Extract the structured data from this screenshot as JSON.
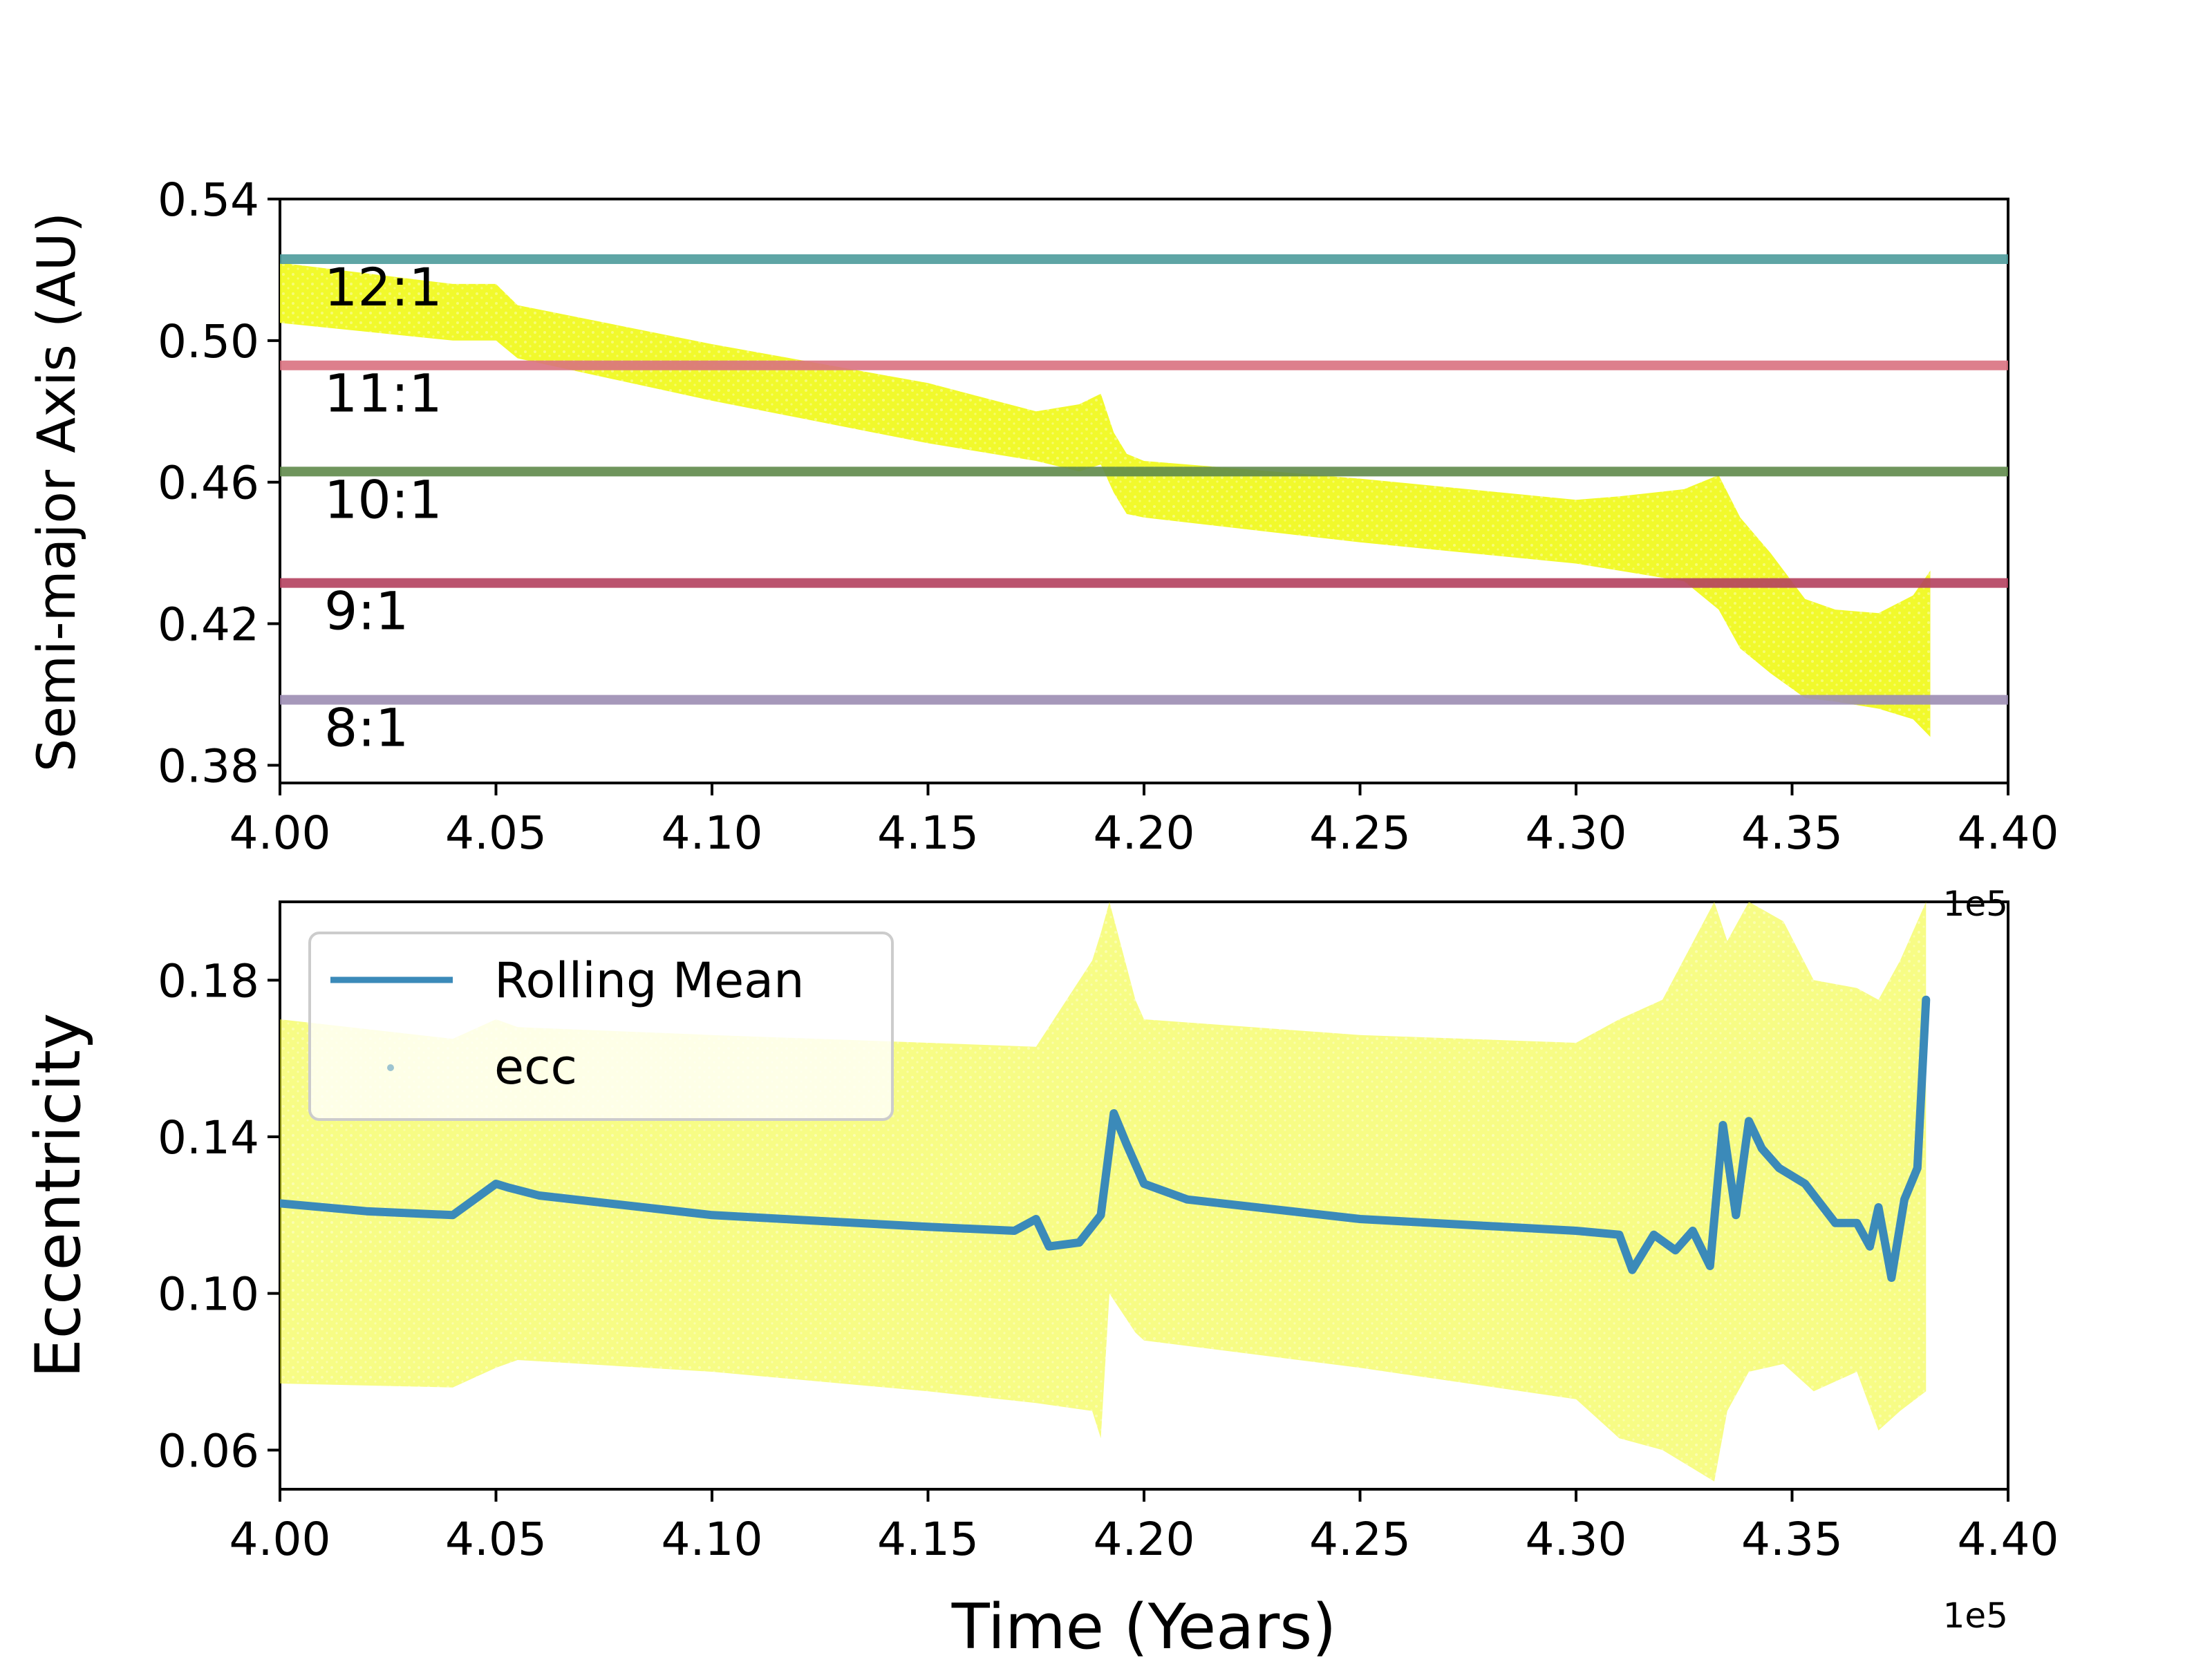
{
  "colors": {
    "gradient": [
      "#f0f921",
      "#fdc527",
      "#f89540",
      "#e16462",
      "#d8576b",
      "#b12a90",
      "#8f0da4",
      "#6a00a8"
    ],
    "rolling_mean": "#3b8ab9",
    "resonance_12_1": "#4c9b9b",
    "resonance_11_1": "#d9717f",
    "resonance_10_1": "#5f8a4a",
    "resonance_9_1": "#b4405e",
    "resonance_8_1": "#9c8db3"
  },
  "chart_data": [
    {
      "type": "scatter",
      "panel": "top",
      "xlabel": "",
      "ylabel": "Semi-major Axis (AU)",
      "xlim": [
        400000,
        440000
      ],
      "ylim": [
        0.375,
        0.54
      ],
      "xticks": [
        400000,
        405000,
        410000,
        415000,
        420000,
        425000,
        430000,
        435000,
        440000
      ],
      "xtick_labels": [
        "4.00",
        "4.05",
        "4.10",
        "4.15",
        "4.20",
        "4.25",
        "4.30",
        "4.35",
        "4.40"
      ],
      "yticks": [
        0.38,
        0.42,
        0.46,
        0.5,
        0.54
      ],
      "ytick_labels": [
        "0.38",
        "0.42",
        "0.46",
        "0.50",
        "0.54"
      ],
      "x_offset_text": "1e5",
      "resonances": [
        {
          "label": "12:1",
          "value": 0.523,
          "color_key": "resonance_12_1"
        },
        {
          "label": "11:1",
          "value": 0.493,
          "color_key": "resonance_11_1"
        },
        {
          "label": "10:1",
          "value": 0.463,
          "color_key": "resonance_10_1"
        },
        {
          "label": "9:1",
          "value": 0.4315,
          "color_key": "resonance_9_1"
        },
        {
          "label": "8:1",
          "value": 0.3985,
          "color_key": "resonance_8_1"
        }
      ],
      "band_x": [
        400000,
        404000,
        405000,
        405500,
        410000,
        415000,
        417500,
        418500,
        419000,
        419300,
        419600,
        420000,
        425000,
        430000,
        431000,
        432500,
        433300,
        433800,
        434500,
        435300,
        436000,
        437000,
        437800,
        438200
      ],
      "band_upper": [
        0.522,
        0.516,
        0.516,
        0.51,
        0.499,
        0.488,
        0.48,
        0.482,
        0.485,
        0.474,
        0.468,
        0.466,
        0.461,
        0.455,
        0.456,
        0.458,
        0.462,
        0.45,
        0.44,
        0.427,
        0.424,
        0.423,
        0.428,
        0.435
      ],
      "band_lower": [
        0.505,
        0.5,
        0.5,
        0.495,
        0.483,
        0.471,
        0.466,
        0.463,
        0.465,
        0.457,
        0.451,
        0.45,
        0.443,
        0.437,
        0.435,
        0.432,
        0.424,
        0.413,
        0.406,
        0.399,
        0.398,
        0.396,
        0.393,
        0.388
      ]
    },
    {
      "type": "scatter",
      "panel": "bottom",
      "xlabel": "Time (Years)",
      "ylabel": "Eccentricity",
      "xlim": [
        400000,
        440000
      ],
      "ylim": [
        0.05,
        0.2
      ],
      "xticks": [
        400000,
        405000,
        410000,
        415000,
        420000,
        425000,
        430000,
        435000,
        440000
      ],
      "xtick_labels": [
        "4.00",
        "4.05",
        "4.10",
        "4.15",
        "4.20",
        "4.25",
        "4.30",
        "4.35",
        "4.40"
      ],
      "yticks": [
        0.06,
        0.1,
        0.14,
        0.18
      ],
      "ytick_labels": [
        "0.06",
        "0.10",
        "0.14",
        "0.18"
      ],
      "x_offset_text": "1e5",
      "legend": {
        "placement": "top-left",
        "entries": [
          "Rolling Mean",
          "ecc"
        ]
      },
      "series": [
        {
          "name": "Rolling Mean",
          "x": [
            400000,
            402000,
            404000,
            405000,
            405300,
            406000,
            410000,
            415000,
            417000,
            417500,
            417800,
            418500,
            419000,
            419300,
            419600,
            420000,
            421000,
            425000,
            430000,
            431000,
            431300,
            431800,
            432300,
            432700,
            433100,
            433400,
            433700,
            434000,
            434300,
            434700,
            435300,
            436000,
            436500,
            436800,
            437000,
            437300,
            437600,
            437900,
            438100
          ],
          "values": [
            0.123,
            0.121,
            0.12,
            0.128,
            0.127,
            0.125,
            0.12,
            0.117,
            0.116,
            0.119,
            0.112,
            0.113,
            0.12,
            0.146,
            0.138,
            0.128,
            0.124,
            0.119,
            0.116,
            0.115,
            0.106,
            0.115,
            0.111,
            0.116,
            0.107,
            0.143,
            0.12,
            0.144,
            0.137,
            0.132,
            0.128,
            0.118,
            0.118,
            0.112,
            0.122,
            0.104,
            0.124,
            0.132,
            0.175
          ]
        }
      ],
      "band_x": [
        400000,
        404000,
        405000,
        405500,
        410000,
        415000,
        417500,
        418800,
        419000,
        419200,
        419800,
        420000,
        425000,
        430000,
        431000,
        432000,
        433200,
        433500,
        434000,
        434800,
        435500,
        436500,
        437000,
        437500,
        438100
      ],
      "band_upper": [
        0.17,
        0.165,
        0.17,
        0.168,
        0.166,
        0.164,
        0.163,
        0.185,
        0.192,
        0.2,
        0.175,
        0.17,
        0.166,
        0.164,
        0.17,
        0.175,
        0.2,
        0.19,
        0.2,
        0.195,
        0.18,
        0.178,
        0.175,
        0.185,
        0.2
      ],
      "band_lower": [
        0.077,
        0.076,
        0.081,
        0.083,
        0.08,
        0.075,
        0.072,
        0.07,
        0.063,
        0.1,
        0.09,
        0.088,
        0.081,
        0.073,
        0.063,
        0.06,
        0.052,
        0.07,
        0.08,
        0.082,
        0.075,
        0.08,
        0.065,
        0.07,
        0.075
      ]
    }
  ]
}
